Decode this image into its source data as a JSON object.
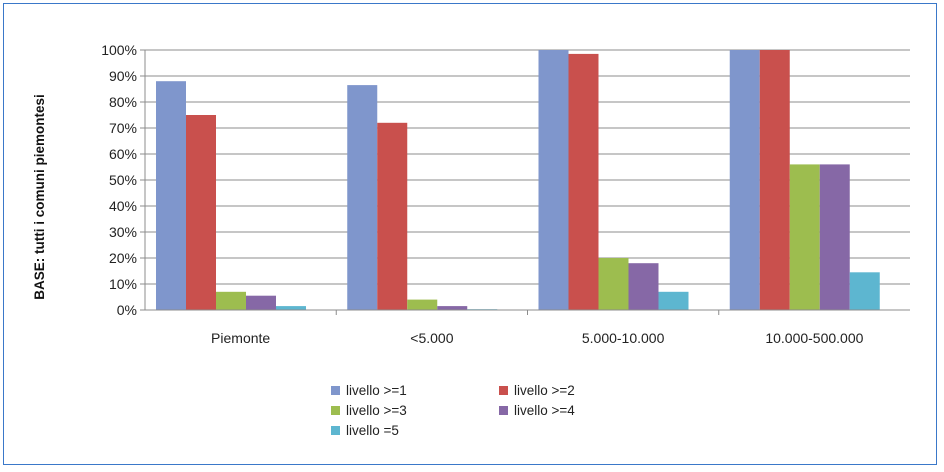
{
  "chart_data": {
    "type": "bar",
    "ylabel": "BASE: tutti i comuni piemontesi",
    "xlabel": "",
    "ylim": [
      0,
      100
    ],
    "yticks": [
      "0%",
      "10%",
      "20%",
      "30%",
      "40%",
      "50%",
      "60%",
      "70%",
      "80%",
      "90%",
      "100%"
    ],
    "grid": true,
    "legend_position": "bottom",
    "categories": [
      "Piemonte",
      "<5.000",
      "5.000-10.000",
      "10.000-500.000"
    ],
    "series": [
      {
        "name": "livello >=1",
        "color": "#7f96cc",
        "values": [
          88,
          86.5,
          100,
          100
        ]
      },
      {
        "name": "livello >=2",
        "color": "#c9504d",
        "values": [
          75,
          72,
          98.5,
          100
        ]
      },
      {
        "name": "livello >=3",
        "color": "#9dbd4f",
        "values": [
          7,
          4,
          20,
          56
        ]
      },
      {
        "name": "livello >=4",
        "color": "#8668a6",
        "values": [
          5.5,
          1.5,
          18,
          56
        ]
      },
      {
        "name": "livello =5",
        "color": "#5db6d0",
        "values": [
          1.5,
          0.3,
          7,
          14.5
        ]
      }
    ]
  }
}
